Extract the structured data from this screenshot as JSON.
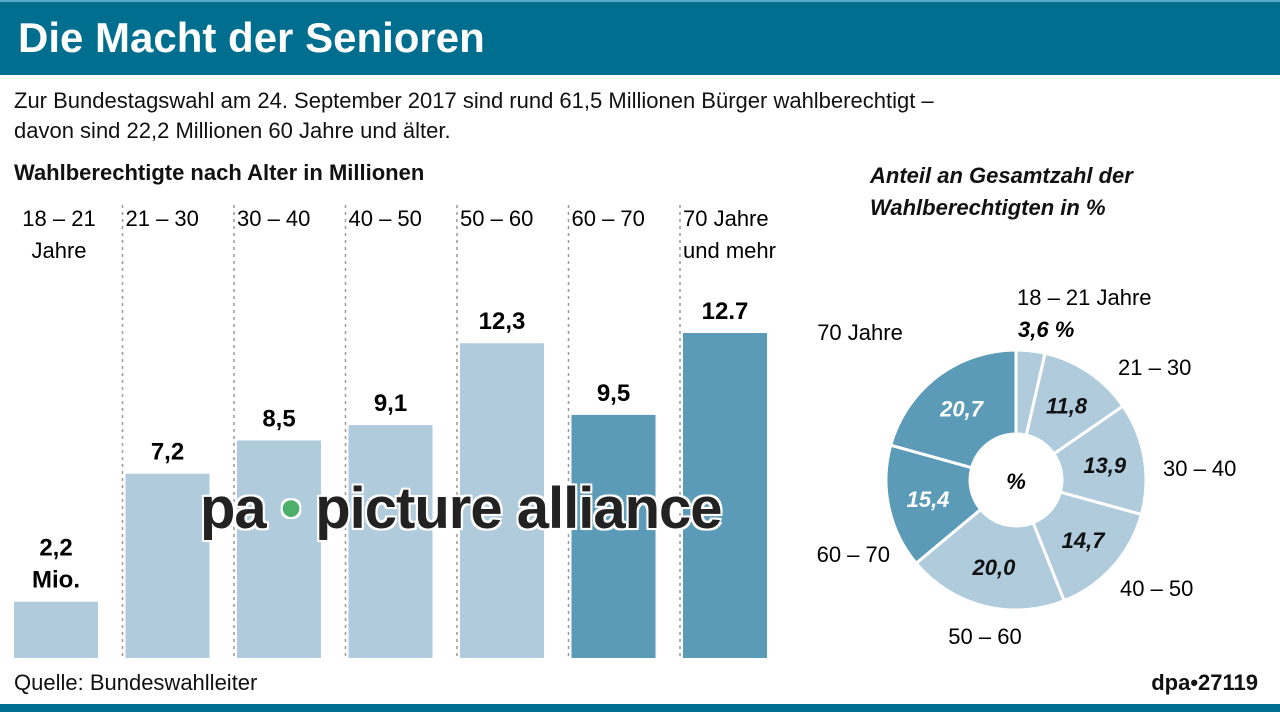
{
  "title": "Die Macht der Senioren",
  "subtitle_lines": [
    "Zur Bundestagswahl am 24. September 2017 sind rund 61,5 Millionen Bürger wahlberechtigt –",
    "davon sind 22,2 Millionen 60 Jahre und älter."
  ],
  "source": "Quelle: Bundeswahlleiter",
  "credit": "dpa•27119",
  "watermark": {
    "left": "pa",
    "dot": "•",
    "right": "picture alliance"
  },
  "colors": {
    "header": "#006e8f",
    "light": "#afcbdc",
    "dark": "#5b9bb8"
  },
  "chart_data": [
    {
      "type": "bar",
      "title": "Wahlberechtigte nach Alter in Millionen",
      "categories": [
        [
          "18 – 21",
          "Jahre"
        ],
        [
          "21 – 30"
        ],
        [
          "30 – 40"
        ],
        [
          "40 – 50"
        ],
        [
          "50 – 60"
        ],
        [
          "60 – 70"
        ],
        [
          "70 Jahre",
          "und mehr"
        ]
      ],
      "values": [
        2.2,
        7.2,
        8.5,
        9.1,
        12.3,
        9.5,
        12.7
      ],
      "value_labels": [
        [
          "2,2",
          "Mio."
        ],
        [
          "7,2"
        ],
        [
          "8,5"
        ],
        [
          "9,1"
        ],
        [
          "12,3"
        ],
        [
          "9,5"
        ],
        [
          "12.7"
        ]
      ],
      "highlight": [
        false,
        false,
        false,
        false,
        false,
        true,
        true
      ],
      "ylim": [
        0,
        12.7
      ]
    },
    {
      "type": "pie",
      "title_lines": [
        "Anteil an Gesamtzahl der",
        "Wahlberechtigten in %"
      ],
      "center_label": "%",
      "categories": [
        "18 – 21 Jahre",
        "21 – 30",
        "30 – 40",
        "40 – 50",
        "50 – 60",
        "60 – 70",
        "70 Jahre"
      ],
      "values": [
        3.6,
        11.8,
        13.9,
        14.7,
        20.0,
        15.4,
        20.7
      ],
      "value_labels": [
        "3,6 %",
        "11,8",
        "13,9",
        "14,7",
        "20,0",
        "15,4",
        "20,7"
      ],
      "highlight": [
        false,
        false,
        false,
        false,
        false,
        true,
        true
      ]
    }
  ]
}
